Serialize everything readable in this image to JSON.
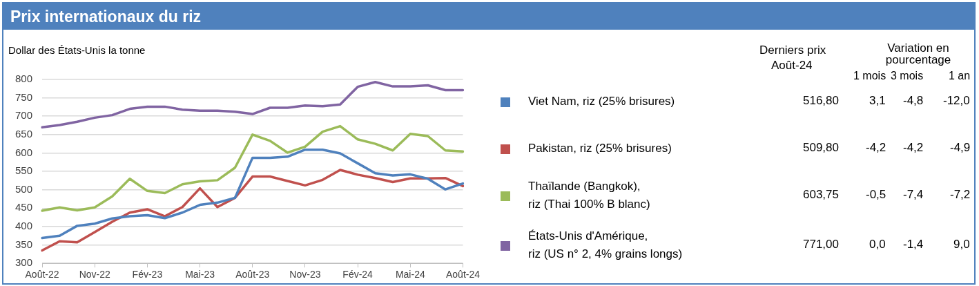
{
  "chart_data": {
    "type": "line",
    "title": "Prix internationaux du riz",
    "ylabel": "Dollar des États-Unis la tonne",
    "categories": [
      "Août-22",
      null,
      null,
      "Nov-22",
      null,
      null,
      "Fév-23",
      null,
      null,
      "Mai-23",
      null,
      null,
      "Août-23",
      null,
      null,
      "Nov-23",
      null,
      null,
      "Fév-24",
      null,
      null,
      "Mai-24",
      null,
      null,
      "Août-24"
    ],
    "series": [
      {
        "name": "Viet Nam, riz (25% brisures)",
        "color": "#4f81bd",
        "values": [
          369,
          375,
          402,
          408,
          422,
          428,
          431,
          423,
          438,
          459,
          465,
          478,
          587,
          587,
          590,
          609,
          609,
          599,
          572,
          545,
          539,
          542,
          530,
          501,
          517
        ]
      },
      {
        "name": "Pakistan, riz (25% brisures)",
        "color": "#c0504d",
        "values": [
          335,
          360,
          357,
          385,
          413,
          438,
          447,
          428,
          453,
          504,
          453,
          478,
          536,
          536,
          524,
          512,
          527,
          554,
          541,
          532,
          521,
          531,
          531,
          532,
          510
        ]
      },
      {
        "name": "Thaïlande (Bangkok),\nriz (Thai 100% B blanc)",
        "color": "#9bbb59",
        "values": [
          443,
          452,
          444,
          452,
          482,
          530,
          497,
          491,
          515,
          523,
          526,
          560,
          650,
          633,
          601,
          617,
          658,
          673,
          637,
          625,
          607,
          652,
          646,
          607,
          604
        ]
      },
      {
        "name": "États-Unis d'Amérique,\nriz (US n° 2, 4% grains longs)",
        "color": "#8064a2",
        "values": [
          670,
          676,
          685,
          696,
          703,
          720,
          726,
          726,
          718,
          715,
          715,
          712,
          706,
          723,
          723,
          729,
          727,
          732,
          780,
          793,
          781,
          781,
          784,
          771,
          771
        ]
      }
    ],
    "ylim": [
      300,
      800
    ],
    "yticks": [
      300,
      350,
      400,
      450,
      500,
      550,
      600,
      650,
      700,
      750,
      800
    ],
    "grid": "y",
    "legend": "right",
    "marker": "none",
    "line_style": "solid",
    "annotations": [
      "Derniers prix",
      "Août-24",
      "Variation en pourcentage",
      "1 mois",
      "3 mois",
      "1 an",
      "516,80",
      "3,1",
      "-4,8",
      "-12,0",
      "509,80",
      "-4,2",
      "-4,2",
      "-4,9",
      "603,75",
      "-0,5",
      "-7,4",
      "-7,2",
      "771,00",
      "0,0",
      "-1,4",
      "9,0"
    ]
  }
}
